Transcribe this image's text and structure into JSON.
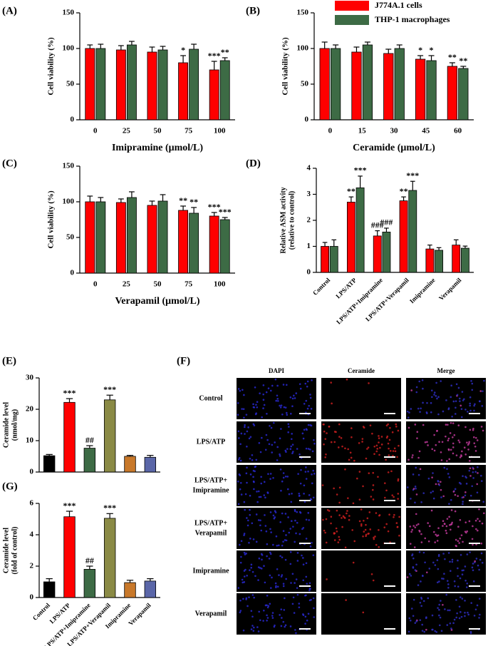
{
  "chart_data": [
    {
      "type": "bar",
      "panel_label": "(A)",
      "x_label": "Imipramine (μmol/L)",
      "y_label": "Cell viability (%)",
      "categories": [
        "0",
        "25",
        "50",
        "75",
        "100"
      ],
      "ylim": [
        0,
        150
      ],
      "yticks": [
        0,
        50,
        100,
        150
      ],
      "legend": false,
      "series": [
        {
          "name": "J774A.1 cells",
          "color": "#ff0000",
          "values": [
            100,
            98,
            95,
            80,
            70
          ],
          "errors": [
            5,
            6,
            7,
            10,
            12
          ],
          "annotations": [
            null,
            null,
            null,
            "*",
            "***"
          ]
        },
        {
          "name": "THP-1 macrophages",
          "color": "#3d6b45",
          "values": [
            100,
            105,
            98,
            99,
            83
          ],
          "errors": [
            6,
            5,
            5,
            7,
            4
          ],
          "annotations": [
            null,
            null,
            null,
            null,
            "**"
          ]
        }
      ]
    },
    {
      "type": "bar",
      "panel_label": "(B)",
      "x_label": "Ceramide (μmol/L)",
      "y_label": "Cell viability (%)",
      "categories": [
        "0",
        "15",
        "30",
        "45",
        "60"
      ],
      "ylim": [
        0,
        150
      ],
      "yticks": [
        0,
        50,
        100,
        150
      ],
      "legend": true,
      "series": [
        {
          "name": "J774A.1 cells",
          "color": "#ff0000",
          "values": [
            100,
            95,
            93,
            85,
            75
          ],
          "errors": [
            9,
            7,
            6,
            5,
            5
          ],
          "annotations": [
            null,
            null,
            null,
            "*",
            "**"
          ]
        },
        {
          "name": "THP-1 macrophages",
          "color": "#3d6b45",
          "values": [
            100,
            105,
            100,
            83,
            72
          ],
          "errors": [
            5,
            4,
            5,
            7,
            3
          ],
          "annotations": [
            null,
            null,
            null,
            "*",
            "**"
          ]
        }
      ]
    },
    {
      "type": "bar",
      "panel_label": "(C)",
      "x_label": "Verapamil (μmol/L)",
      "y_label": "Cell viability (%)",
      "categories": [
        "0",
        "25",
        "50",
        "75",
        "100"
      ],
      "ylim": [
        0,
        150
      ],
      "yticks": [
        0,
        50,
        100,
        150
      ],
      "legend": false,
      "series": [
        {
          "name": "J774A.1 cells",
          "color": "#ff0000",
          "values": [
            100,
            99,
            95,
            88,
            80
          ],
          "errors": [
            8,
            5,
            6,
            6,
            5
          ],
          "annotations": [
            null,
            null,
            null,
            "**",
            "***"
          ]
        },
        {
          "name": "THP-1 macrophages",
          "color": "#3d6b45",
          "values": [
            100,
            106,
            101,
            84,
            75
          ],
          "errors": [
            6,
            8,
            9,
            8,
            3
          ],
          "annotations": [
            null,
            null,
            null,
            "**",
            "***"
          ]
        }
      ]
    },
    {
      "type": "bar",
      "panel_label": "(D)",
      "y_label": [
        "Relative ASM activity",
        "(relative to control)"
      ],
      "categories": [
        "Control",
        "LPS/ATP",
        "LPS/ATP+Imipramine",
        "LPS/ATP+Verapamil",
        "Imipramine",
        "Verapamil"
      ],
      "ylim": [
        0,
        4
      ],
      "yticks": [
        0,
        1,
        2,
        3,
        4
      ],
      "legend": false,
      "series": [
        {
          "name": "J774A.1 cells",
          "color": "#ff0000",
          "values": [
            1.0,
            2.7,
            1.4,
            2.75,
            0.9,
            1.05
          ],
          "errors": [
            0.15,
            0.2,
            0.2,
            0.15,
            0.15,
            0.2
          ],
          "annotations": [
            null,
            "**",
            "###",
            "**",
            null,
            null
          ]
        },
        {
          "name": "THP-1 macrophages",
          "color": "#3d6b45",
          "values": [
            1.0,
            3.25,
            1.55,
            3.15,
            0.85,
            0.93
          ],
          "errors": [
            0.25,
            0.45,
            0.15,
            0.35,
            0.1,
            0.08
          ],
          "annotations": [
            null,
            "***",
            "###",
            "***",
            null,
            null
          ]
        }
      ]
    },
    {
      "type": "bar",
      "panel_label": "(E)",
      "y_label": [
        "Ceramide level",
        "(nmol/mg)"
      ],
      "categories": [
        null,
        null,
        null,
        null,
        null,
        null
      ],
      "ylim": [
        0,
        30
      ],
      "yticks": [
        0,
        10,
        20,
        30
      ],
      "legend": false,
      "series": [
        {
          "colors": [
            "#000000",
            "#ff0000",
            "#3d6b45",
            "#8a8a45",
            "#c8782a",
            "#5a66a8"
          ],
          "values": [
            5.2,
            22.2,
            7.6,
            23,
            5,
            4.7
          ],
          "errors": [
            0.4,
            1.2,
            0.8,
            1.5,
            0.3,
            0.6
          ],
          "annotations": [
            null,
            "***",
            "##",
            "***",
            null,
            null
          ]
        }
      ]
    },
    {
      "type": "bar",
      "panel_label": "(G)",
      "y_label": [
        "Ceramide level",
        "(fold of control)"
      ],
      "categories": [
        "Control",
        "LPS/ATP",
        "LPS/ATP+Imipramine",
        "LPS/ATP+Verapamil",
        "Imipramine",
        "Verapamil"
      ],
      "ylim": [
        0,
        6
      ],
      "yticks": [
        0,
        2,
        4,
        6
      ],
      "legend": false,
      "series": [
        {
          "colors": [
            "#000000",
            "#ff0000",
            "#3d6b45",
            "#8a8a45",
            "#c8782a",
            "#5a66a8"
          ],
          "values": [
            1.0,
            5.15,
            1.8,
            5.05,
            0.95,
            1.05
          ],
          "errors": [
            0.2,
            0.35,
            0.2,
            0.3,
            0.15,
            0.15
          ],
          "annotations": [
            null,
            "***",
            "##",
            "***",
            null,
            null
          ]
        }
      ]
    }
  ],
  "image_panel": {
    "panel_label": "(F)",
    "columns": [
      "DAPI",
      "Ceramide",
      "Merge"
    ],
    "rows": [
      "Control",
      "LPS/ATP",
      [
        "LPS/ATP+",
        "Imipramine"
      ],
      [
        "LPS/ATP+",
        "Verapamil"
      ],
      "Imipramine",
      "Verapamil"
    ]
  }
}
